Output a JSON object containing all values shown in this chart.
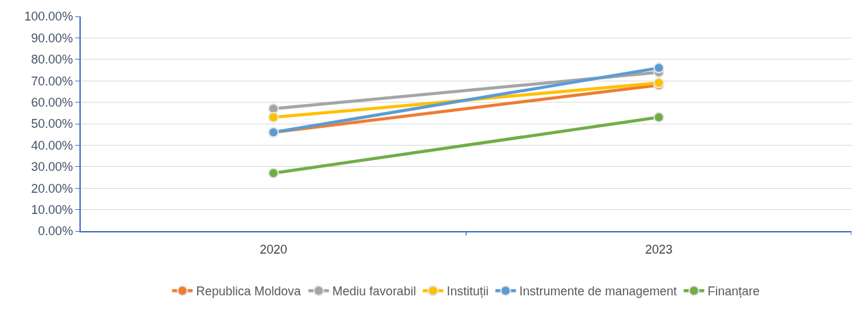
{
  "chart_data": {
    "type": "line",
    "categories": [
      "2020",
      "2023"
    ],
    "series": [
      {
        "name": "Republica Moldova",
        "color": "#ed7d31",
        "values": [
          46,
          68
        ]
      },
      {
        "name": "Mediu favorabil",
        "color": "#a5a5a5",
        "values": [
          57,
          74
        ]
      },
      {
        "name": "Instituții",
        "color": "#ffc000",
        "values": [
          53,
          69
        ]
      },
      {
        "name": "Instrumente de management",
        "color": "#5b9bd5",
        "values": [
          46,
          76
        ]
      },
      {
        "name": "Finanțare",
        "color": "#70ad47",
        "values": [
          27,
          53
        ]
      }
    ],
    "ylim": [
      0,
      100
    ],
    "yticks": [
      {
        "value": 0,
        "label": "0.00%"
      },
      {
        "value": 10,
        "label": "10.00%"
      },
      {
        "value": 20,
        "label": "20.00%"
      },
      {
        "value": 30,
        "label": "30.00%"
      },
      {
        "value": 40,
        "label": "40.00%"
      },
      {
        "value": 50,
        "label": "50.00%"
      },
      {
        "value": 60,
        "label": "60.00%"
      },
      {
        "value": 70,
        "label": "70.00%"
      },
      {
        "value": 80,
        "label": "80.00%"
      },
      {
        "value": 90,
        "label": "90.00%"
      },
      {
        "value": 100,
        "label": "100.00%"
      }
    ],
    "grid": "y",
    "legend": "bottom",
    "marker": "circle",
    "line_style": "solid"
  }
}
